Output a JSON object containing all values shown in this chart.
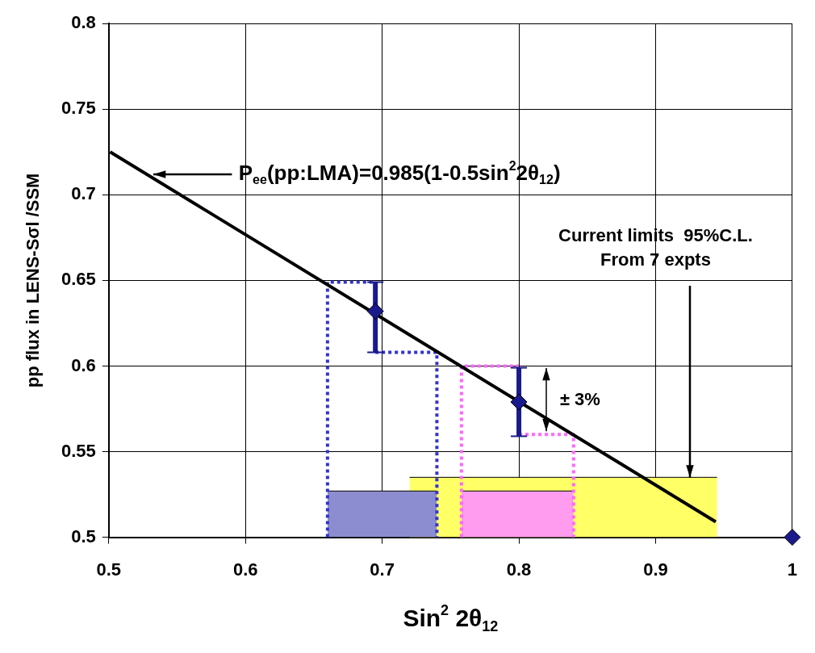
{
  "chart_data": {
    "type": "scatter",
    "xlabel": "Sin$^{2}$ 2θ$_{12}$",
    "ylabel": "pp flux in LENS-Sσl /SSM",
    "xlim": [
      0.5,
      1
    ],
    "xticks": [
      0.5,
      0.6,
      0.7,
      0.8,
      0.9,
      1
    ],
    "ylim": [
      0.5,
      0.8
    ],
    "yticks": [
      0.5,
      0.55,
      0.6,
      0.65,
      0.7,
      0.75,
      0.8
    ],
    "grid": true,
    "legend": false,
    "series": [
      {
        "type": "area",
        "color": "#ffff66",
        "x": [
          0.72,
          0.945
        ],
        "values": [
          0.535,
          0.535
        ]
      },
      {
        "type": "area",
        "color": "#8c8cd0",
        "x": [
          0.66,
          0.74
        ],
        "values": [
          0.527,
          0.527
        ]
      },
      {
        "type": "area",
        "color": "#ff9cf0",
        "x": [
          0.758,
          0.84
        ],
        "values": [
          0.527,
          0.527
        ]
      },
      {
        "type": "line",
        "color": "#3333cc",
        "line_style": "dotted",
        "marker": "none",
        "x": [
          0.66,
          0.66,
          0.695
        ],
        "values": [
          0.5,
          0.649,
          0.649
        ]
      },
      {
        "type": "line",
        "color": "#3333cc",
        "line_style": "dotted",
        "marker": "none",
        "x": [
          0.695,
          0.74,
          0.74
        ],
        "values": [
          0.608,
          0.608,
          0.5
        ]
      },
      {
        "type": "line",
        "color": "#ff66ff",
        "line_style": "dotted",
        "marker": "none",
        "x": [
          0.758,
          0.758,
          0.8
        ],
        "values": [
          0.5,
          0.6,
          0.6
        ]
      },
      {
        "type": "line",
        "color": "#ff66ff",
        "line_style": "dotted",
        "marker": "none",
        "x": [
          0.8,
          0.84,
          0.84
        ],
        "values": [
          0.56,
          0.56,
          0.5
        ]
      },
      {
        "type": "line",
        "color": "#000000",
        "line_style": "solid",
        "marker": "none",
        "x": [
          0.501,
          0.944
        ],
        "values": [
          0.725,
          0.509
        ]
      },
      {
        "type": "scatter",
        "color": "#1a1a8c",
        "marker": "diamond",
        "x": [
          0.695,
          0.8,
          1
        ],
        "values": [
          0.632,
          0.579,
          0.5
        ],
        "errors": [
          [
            0.608,
            0.649
          ],
          [
            0.559,
            0.599
          ],
          null
        ]
      }
    ],
    "annotations": [
      "P$_{ee}$(pp:LMA)=0.985(1-0.5sin$^{2}$2θ$_{12}$)",
      {
        "text": "Current limits  95%C.L.\nFrom 7 expts",
        "x": 0.925,
        "y": 0.535
      },
      "± 3%"
    ]
  }
}
